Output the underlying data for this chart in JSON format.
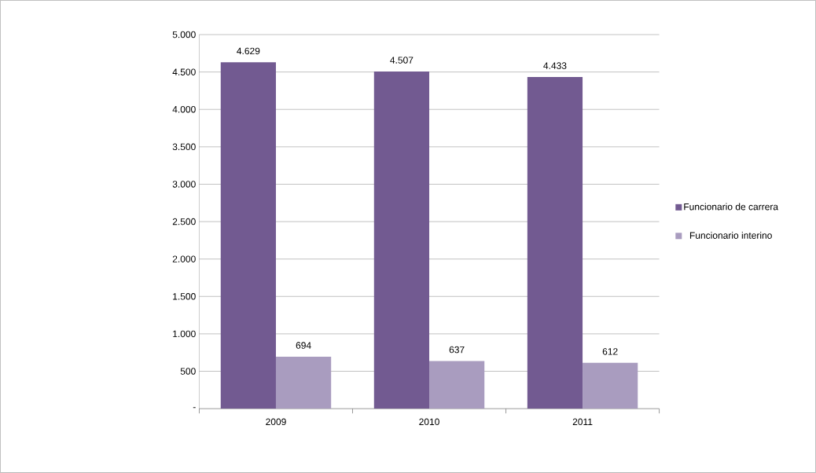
{
  "chart_data": {
    "type": "bar",
    "categories": [
      "2009",
      "2010",
      "2011"
    ],
    "series": [
      {
        "name": "Funcionario de carrera",
        "color": "#725a91",
        "values": [
          4629,
          4507,
          4433
        ],
        "value_labels": [
          "4.629",
          "4.507",
          "4.433"
        ]
      },
      {
        "name": "Funcionario interino",
        "color": "#a99cbf",
        "values": [
          694,
          637,
          612
        ],
        "value_labels": [
          "694",
          "637",
          "612"
        ]
      }
    ],
    "ylim": [
      0,
      5000
    ],
    "yticks": [
      {
        "value": 0,
        "label": "-"
      },
      500,
      {
        "value": 1000,
        "label": "1.000"
      },
      {
        "value": 1500,
        "label": "1.500"
      },
      {
        "value": 2000,
        "label": "2.000"
      },
      {
        "value": 2500,
        "label": "2.500"
      },
      {
        "value": 3000,
        "label": "3.000"
      },
      {
        "value": 3500,
        "label": "3.500"
      },
      {
        "value": 4000,
        "label": "4.000"
      },
      {
        "value": 4500,
        "label": "4.500"
      },
      {
        "value": 5000,
        "label": "5.000"
      }
    ],
    "grid": "y",
    "legend": "right"
  }
}
